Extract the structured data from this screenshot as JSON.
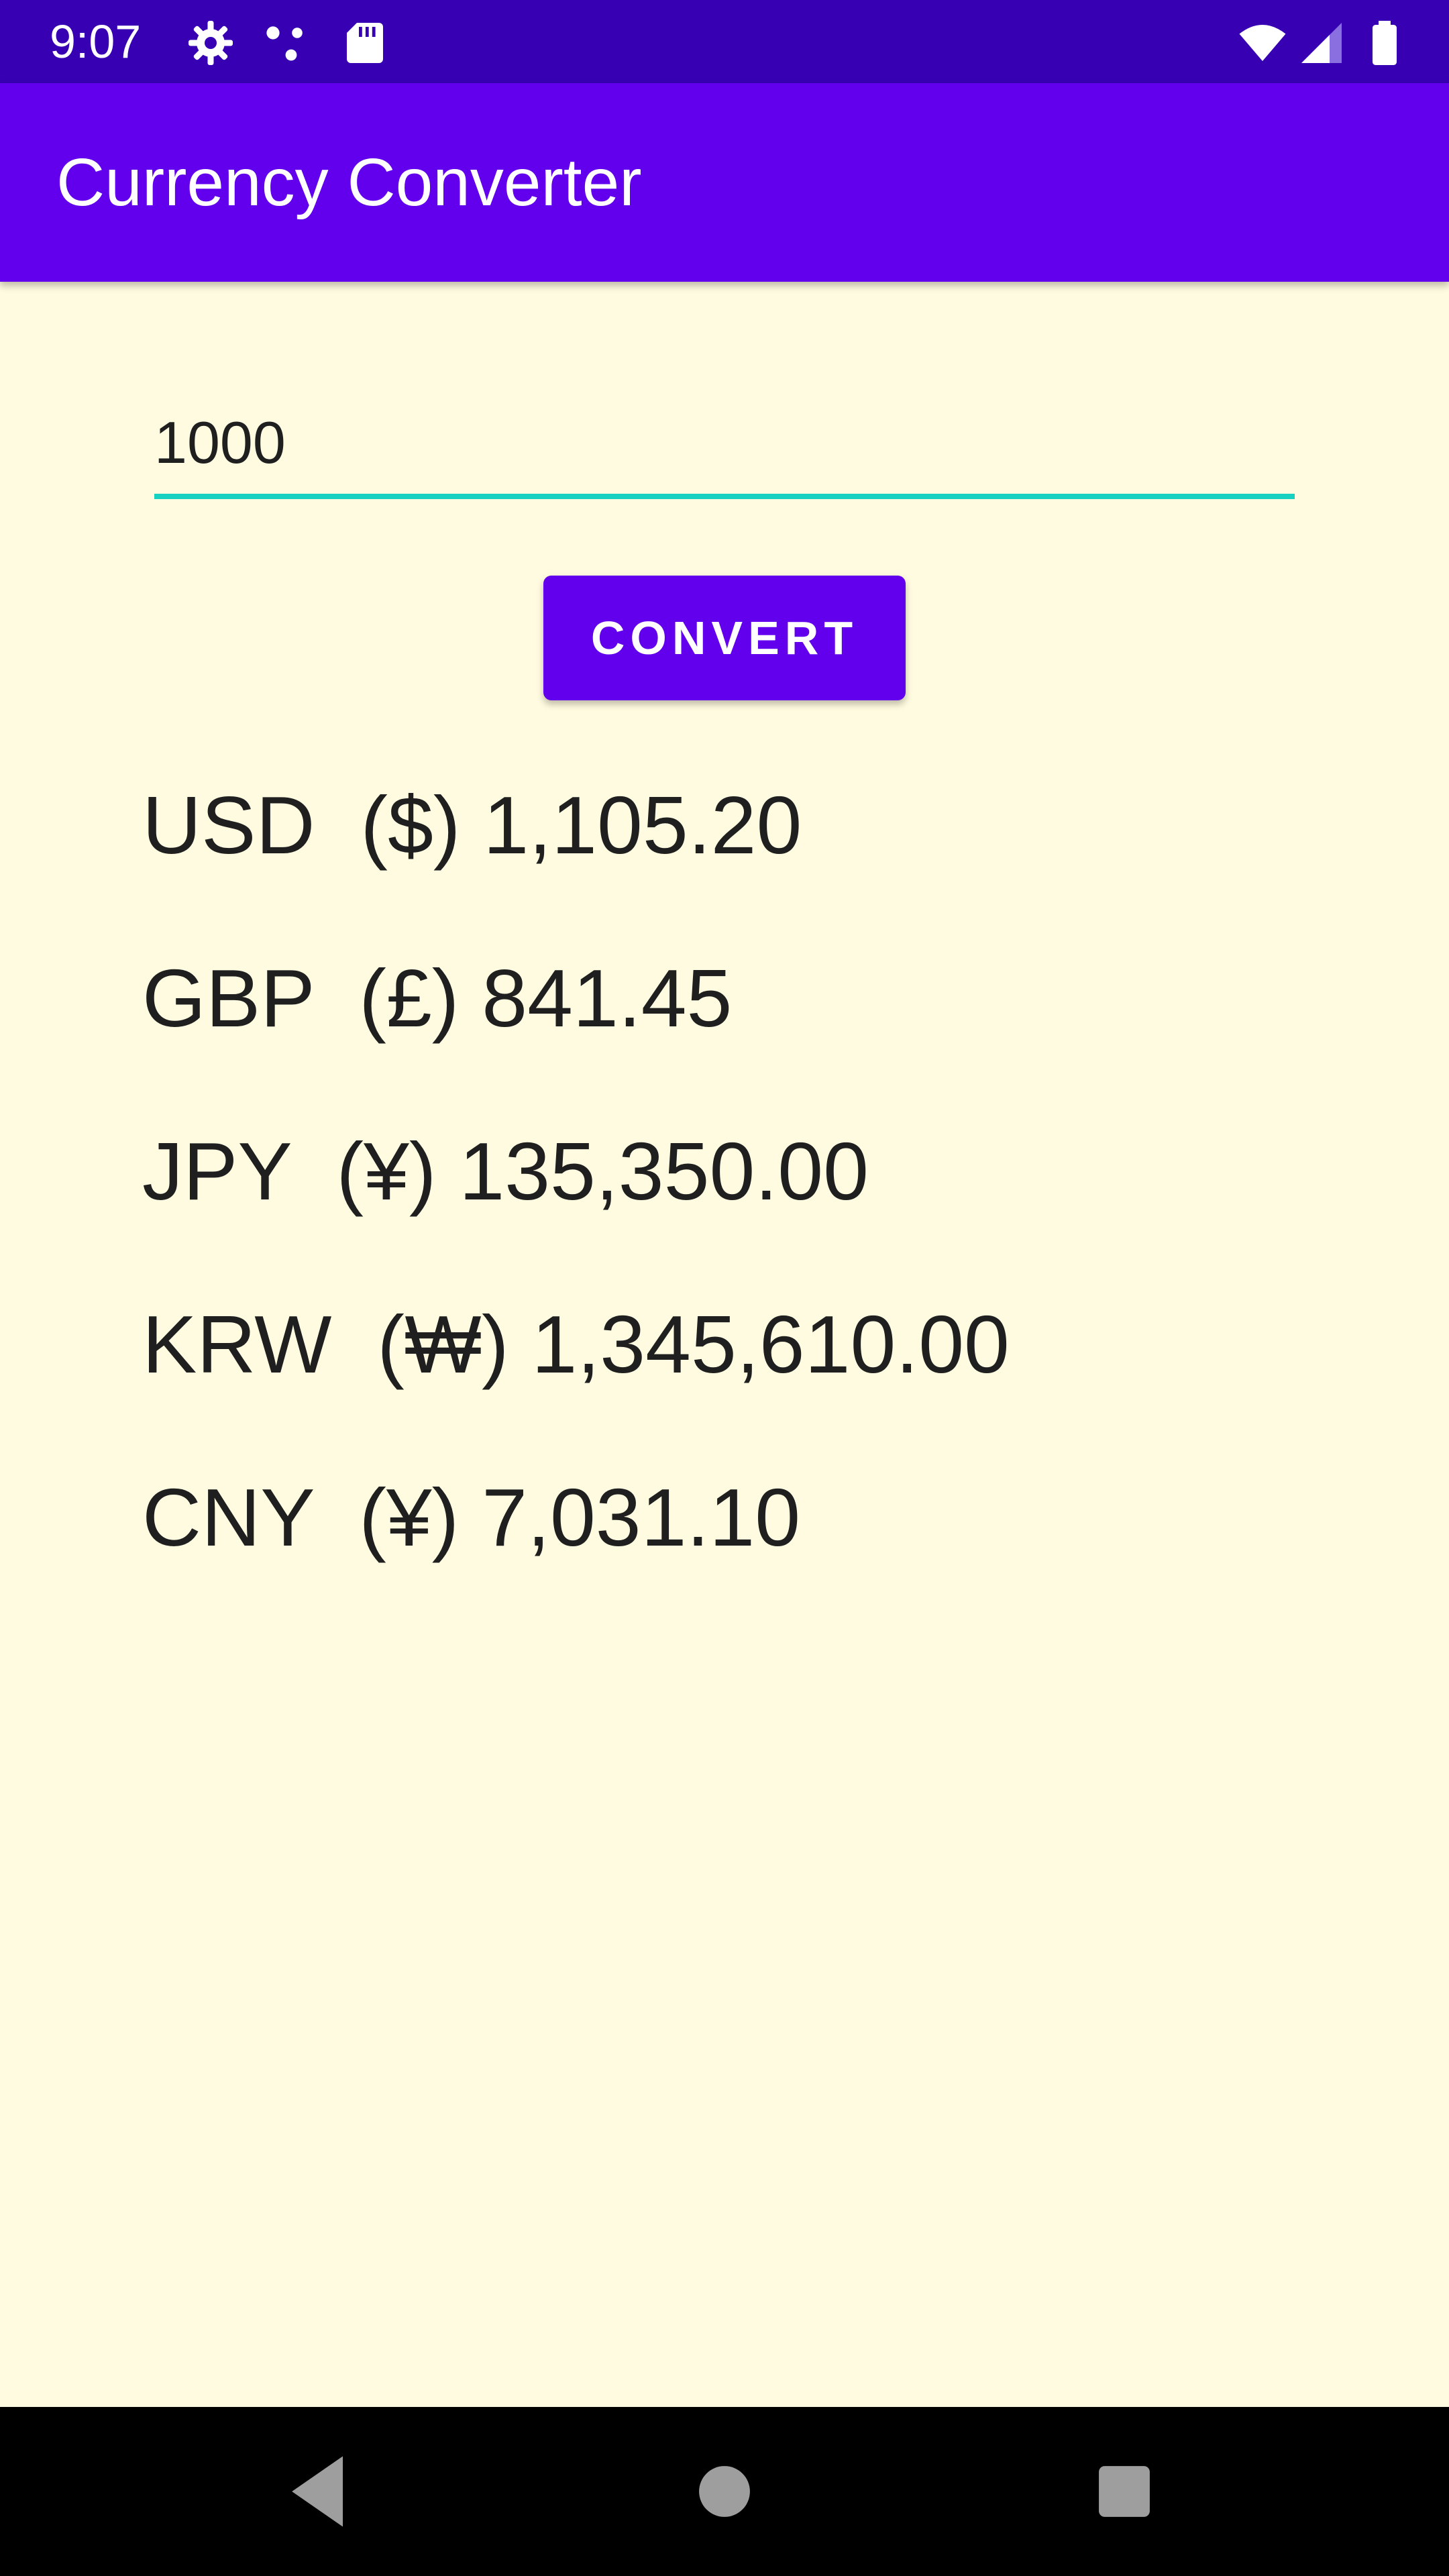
{
  "status_bar": {
    "time": "9:07",
    "icons": [
      "settings-icon",
      "dots-icon",
      "sd-card-icon",
      "wifi-icon",
      "signal-icon",
      "battery-icon"
    ]
  },
  "app_bar": {
    "title": "Currency Converter"
  },
  "amount": {
    "value": "1000"
  },
  "convert_button": {
    "label": "CONVERT"
  },
  "rates": [
    {
      "code": "USD",
      "symbol": "($)",
      "amount": "1,105.20"
    },
    {
      "code": "GBP",
      "symbol": "(£)",
      "amount": "841.45"
    },
    {
      "code": "JPY",
      "symbol": "(¥)",
      "amount": "135,350.00"
    },
    {
      "code": "KRW",
      "symbol": "(₩)",
      "amount": "1,345,610.00"
    },
    {
      "code": "CNY",
      "symbol": "(¥)",
      "amount": "7,031.10"
    }
  ],
  "nav_bar": {
    "buttons": [
      "back-icon",
      "home-icon",
      "recents-icon"
    ]
  },
  "colors": {
    "primary": "#6200EE",
    "primary_dark": "#3700B3",
    "accent": "#18D1C0",
    "background": "#FFFBE0"
  }
}
